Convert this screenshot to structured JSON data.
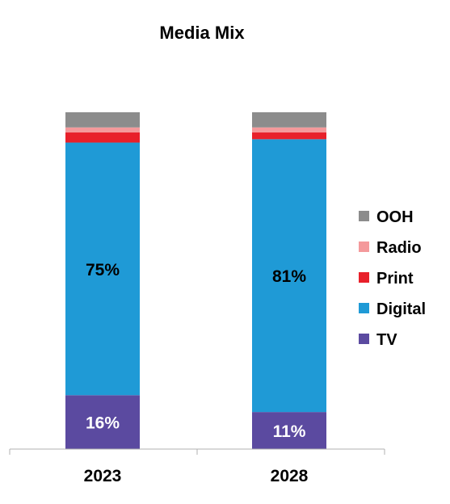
{
  "chart_data": {
    "type": "bar",
    "stacked": true,
    "percent": true,
    "title": "Media Mix",
    "categories": [
      "2023",
      "2028"
    ],
    "series": [
      {
        "name": "TV",
        "color": "#5b4aa0",
        "values": [
          16,
          11
        ],
        "labels": [
          "16%",
          "11%"
        ]
      },
      {
        "name": "Digital",
        "color": "#1f9ad6",
        "values": [
          75,
          81
        ],
        "labels": [
          "75%",
          "81%"
        ]
      },
      {
        "name": "Print",
        "color": "#e8202a",
        "values": [
          3,
          2
        ],
        "labels": [
          "",
          ""
        ]
      },
      {
        "name": "Radio",
        "color": "#f4999b",
        "values": [
          1.5,
          1.5
        ],
        "labels": [
          "",
          ""
        ]
      },
      {
        "name": "OOH",
        "color": "#8c8c8c",
        "values": [
          4.5,
          4.5
        ],
        "labels": [
          "",
          ""
        ]
      }
    ],
    "legend_order": [
      "OOH",
      "Radio",
      "Print",
      "Digital",
      "TV"
    ],
    "legend_position": "right",
    "ylim": [
      0,
      100
    ],
    "grid": false
  }
}
